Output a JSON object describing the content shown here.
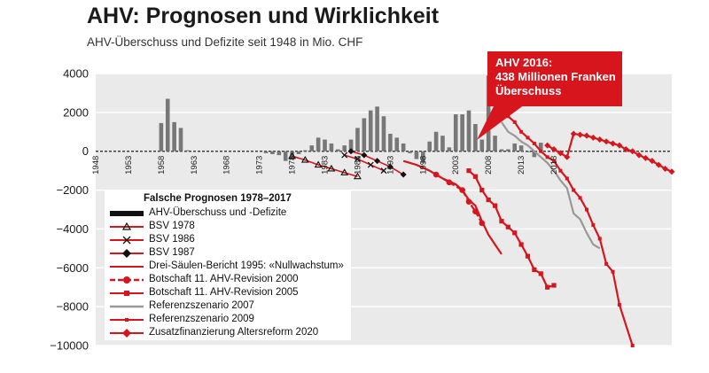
{
  "chart_data": {
    "type": "bar",
    "title": "AHV: Prognosen und Wirklichkeit",
    "subtitle": "AHV-Überschuss und Defizite seit 1948 in Mio. CHF",
    "xlabel": "",
    "ylabel": "",
    "ylim": [
      -10000,
      4000
    ],
    "y_ticks": [
      4000,
      2000,
      0,
      -2000,
      -4000,
      -6000,
      -8000,
      -10000
    ],
    "y_tick_labels": [
      "4000",
      "2000",
      "0",
      "−2000",
      "−4000",
      "−6000",
      "−8000",
      "−10000"
    ],
    "xlim": [
      1948,
      2036
    ],
    "x_ticks": [
      1948,
      1953,
      1958,
      1963,
      1968,
      1973,
      1978,
      1983,
      1988,
      1993,
      1998,
      2003,
      2008,
      2013,
      2018
    ],
    "grid": true,
    "legend_title": "Falsche Prognosen 1978–2017",
    "callout": [
      "AHV 2016:",
      "438 Millionen Franken",
      "Überschuss"
    ],
    "colors": {
      "actual": "#777777",
      "bsv": "#d7151d",
      "gray_series": "#999999",
      "callout": "#d7151d"
    },
    "actual": {
      "name": "AHV-Überschuss und -Defizite",
      "x": [
        1958,
        1959,
        1960,
        1961,
        1962,
        1974,
        1975,
        1976,
        1977,
        1978,
        1979,
        1980,
        1981,
        1982,
        1983,
        1984,
        1985,
        1986,
        1987,
        1988,
        1989,
        1990,
        1991,
        1992,
        1993,
        1994,
        1995,
        1996,
        1997,
        1998,
        1999,
        2000,
        2001,
        2002,
        2003,
        2004,
        2005,
        2006,
        2007,
        2008,
        2009,
        2010,
        2011,
        2012,
        2013,
        2014,
        2015,
        2016
      ],
      "values": [
        1450,
        2700,
        1500,
        1200,
        50,
        -100,
        -150,
        -200,
        -500,
        -400,
        -150,
        50,
        300,
        700,
        600,
        400,
        100,
        300,
        600,
        1200,
        1700,
        2100,
        2300,
        1800,
        900,
        700,
        400,
        -100,
        -400,
        -600,
        500,
        1000,
        800,
        200,
        1900,
        1900,
        2100,
        1400,
        600,
        3900,
        800,
        100,
        100,
        400,
        300,
        -50,
        -300,
        438
      ]
    },
    "series": [
      {
        "name": "BSV 1978",
        "marker": "triangle",
        "x": [
          1978,
          1980,
          1982,
          1984,
          1986,
          1988
        ],
        "values": [
          -250,
          -450,
          -700,
          -900,
          -1100,
          -1300
        ]
      },
      {
        "name": "BSV 1986",
        "marker": "x",
        "x": [
          1986,
          1988,
          1990,
          1992
        ],
        "values": [
          -200,
          -400,
          -700,
          -1000
        ]
      },
      {
        "name": "BSV 1987",
        "marker": "diamond",
        "x": [
          1987,
          1989,
          1991,
          1993,
          1995
        ],
        "values": [
          0,
          -200,
          -500,
          -800,
          -1200
        ]
      },
      {
        "name": "Drei-Säulen-Bericht 1995: «Nullwachstum»",
        "marker": "none",
        "x": [
          1995,
          1997,
          1999,
          2001,
          2003,
          2004,
          2005,
          2006,
          2007,
          2008,
          2009,
          2010
        ],
        "values": [
          -500,
          -700,
          -1000,
          -1400,
          -1700,
          -2000,
          -2500,
          -2800,
          -3600,
          -4300,
          -4800,
          -5300
        ]
      },
      {
        "name": "Botschaft 11. AHV-Revision 2000",
        "marker": "dot",
        "dashed": true,
        "x": [
          2000,
          2002,
          2004,
          2005,
          2006,
          2007
        ],
        "values": [
          -1200,
          -1600,
          -2000,
          -2600,
          -3100,
          -3700
        ]
      },
      {
        "name": "Botschaft 11. AHV-Revision 2005",
        "marker": "square",
        "x": [
          2005,
          2006,
          2007,
          2008,
          2009,
          2010,
          2011,
          2012,
          2013,
          2014,
          2015,
          2016,
          2017,
          2018
        ],
        "values": [
          -1000,
          -1300,
          -2000,
          -2500,
          -2800,
          -3600,
          -3900,
          -4200,
          -4800,
          -5400,
          -6100,
          -6300,
          -7000,
          -6900
        ]
      },
      {
        "name": "Referenzszenario 2007",
        "marker": "none",
        "x": [
          2010,
          2011,
          2012,
          2013,
          2014,
          2015,
          2016,
          2017,
          2018,
          2019,
          2020,
          2021,
          2022,
          2023,
          2024,
          2025
        ],
        "values": [
          1500,
          1000,
          800,
          500,
          300,
          0,
          -300,
          -600,
          -1000,
          -1500,
          -1900,
          -3200,
          -3500,
          -4200,
          -4800,
          -5000
        ]
      },
      {
        "name": "Referenzszenario 2009",
        "marker": "square",
        "x": [
          2010,
          2011,
          2012,
          2013,
          2014,
          2015,
          2016,
          2017,
          2018,
          2019,
          2020,
          2021,
          2022,
          2023,
          2024,
          2025,
          2026,
          2027,
          2028,
          2030
        ],
        "values": [
          2000,
          1800,
          1500,
          1000,
          700,
          400,
          0,
          -300,
          -500,
          -1000,
          -1400,
          -2000,
          -2400,
          -3000,
          -3800,
          -4500,
          -5800,
          -6200,
          -7900,
          -10000
        ]
      },
      {
        "name": "Zusatzfinanzierung Altersreform 2020",
        "marker": "diamond",
        "x": [
          2017,
          2018,
          2019,
          2020,
          2021,
          2022,
          2023,
          2024,
          2025,
          2026,
          2027,
          2028,
          2029,
          2030,
          2031,
          2032,
          2033,
          2034,
          2035,
          2036
        ],
        "values": [
          300,
          100,
          -100,
          -300,
          900,
          850,
          800,
          700,
          600,
          500,
          400,
          300,
          100,
          0,
          -200,
          -350,
          -500,
          -700,
          -900,
          -1050
        ]
      }
    ]
  }
}
